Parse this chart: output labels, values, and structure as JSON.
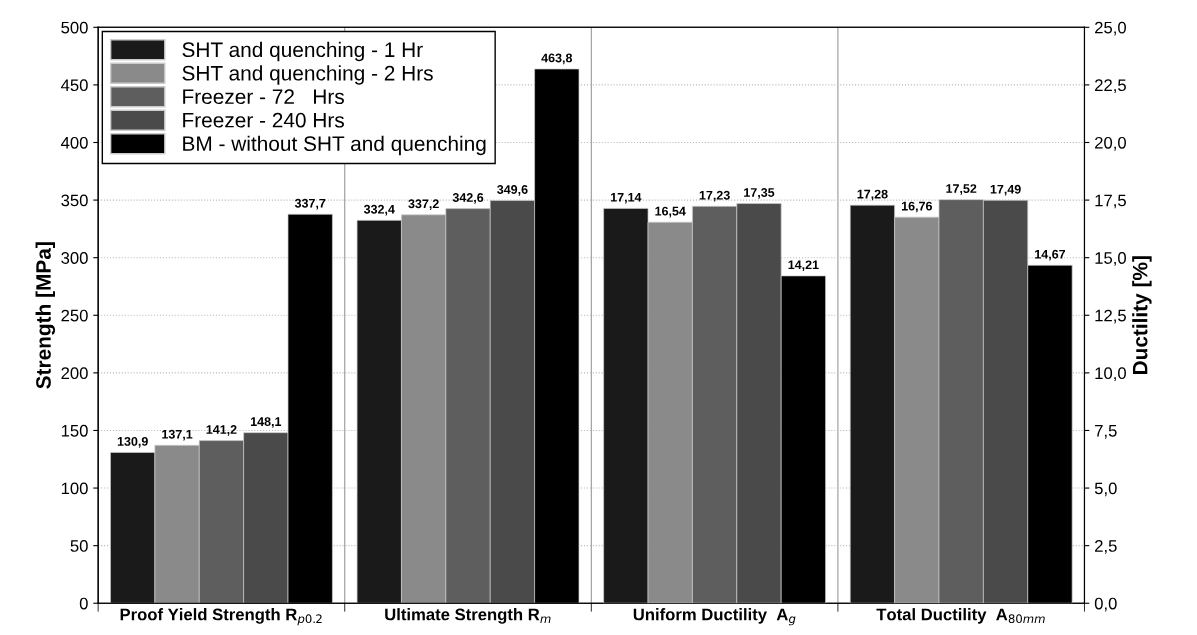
{
  "chart_data": {
    "type": "bar",
    "categories": [
      "Proof Yield Strength R$_{p0.2}$",
      "Ultimate Strength R$_{m}$",
      "Uniform Ductility  A$_{g}$",
      "Total Ductility  A$_{80mm}$"
    ],
    "ylabel": "Strength [MPa]",
    "y2label": "Ductility [%]",
    "ylim": [
      0,
      500
    ],
    "yticks": [
      0,
      50,
      100,
      150,
      200,
      250,
      300,
      350,
      400,
      450,
      500
    ],
    "y2lim": [
      0,
      25
    ],
    "y2ticks": [
      {
        "value": 0,
        "label": "0,0"
      },
      {
        "value": 2.5,
        "label": "2,5"
      },
      {
        "value": 5,
        "label": "5,0"
      },
      {
        "value": 7.5,
        "label": "7,5"
      },
      {
        "value": 10,
        "label": "10,0"
      },
      {
        "value": 12.5,
        "label": "12,5"
      },
      {
        "value": 15,
        "label": "15,0"
      },
      {
        "value": 17.5,
        "label": "17,5"
      },
      {
        "value": 20,
        "label": "20,0"
      },
      {
        "value": 22.5,
        "label": "22,5"
      },
      {
        "value": 25,
        "label": "25,0"
      }
    ],
    "grid": true,
    "legend": "top left",
    "series": [
      {
        "name": "SHT and quenching - 1 Hr",
        "color": "#1a1a1a",
        "values": [
          130.9,
          332.4,
          null,
          null
        ],
        "value_labels": [
          "130,9",
          "332,4",
          null,
          null
        ]
      },
      {
        "name": "SHT and quenching - 2 Hrs",
        "color": "#8a8a8a",
        "values": [
          137.1,
          337.2,
          null,
          null
        ],
        "value_labels": [
          "137,1",
          "337,2",
          null,
          null
        ]
      },
      {
        "name": "Freezer - 72   Hrs",
        "color": "#5e5e5e",
        "values": [
          141.2,
          342.6,
          null,
          null
        ],
        "value_labels": [
          "141,2",
          "342,6",
          null,
          null
        ]
      },
      {
        "name": "Freezer - 240 Hrs",
        "color": "#4a4a4a",
        "values": [
          148.1,
          349.6,
          null,
          null
        ],
        "value_labels": [
          "148,1",
          "349,6",
          null,
          null
        ]
      },
      {
        "name": "BM - without SHT and quenching",
        "color": "#000000",
        "values": [
          337.7,
          463.8,
          null,
          null
        ],
        "value_labels": [
          "337,7",
          "463,8",
          null,
          null
        ]
      },
      {
        "axis": "y2",
        "color": "#1a1a1a",
        "values": [
          null,
          null,
          17.14,
          17.28
        ],
        "value_labels": [
          null,
          null,
          "17,14",
          "17,28"
        ]
      },
      {
        "axis": "y2",
        "color": "#8a8a8a",
        "values": [
          null,
          null,
          16.54,
          16.76
        ],
        "value_labels": [
          null,
          null,
          "16,54",
          "16,76"
        ]
      },
      {
        "axis": "y2",
        "color": "#5e5e5e",
        "values": [
          null,
          null,
          17.23,
          17.52
        ],
        "value_labels": [
          null,
          null,
          "17,23",
          "17,52"
        ]
      },
      {
        "axis": "y2",
        "color": "#4a4a4a",
        "values": [
          null,
          null,
          17.35,
          17.49
        ],
        "value_labels": [
          null,
          null,
          "17,35",
          "17,49"
        ]
      },
      {
        "axis": "y2",
        "color": "#000000",
        "values": [
          null,
          null,
          14.21,
          14.67
        ],
        "value_labels": [
          null,
          null,
          "14,21",
          "14,67"
        ]
      }
    ]
  }
}
